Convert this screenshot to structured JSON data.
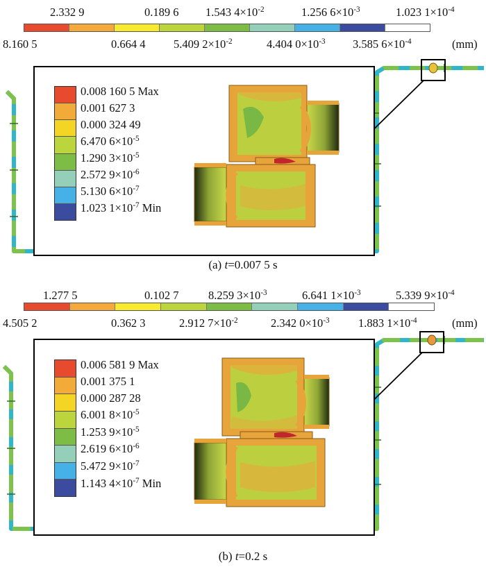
{
  "colors": {
    "scale": [
      "#e74a2c",
      "#f4a93a",
      "#f8ea2f",
      "#bcd53c",
      "#7ebd45",
      "#94cfb9",
      "#45b1e6",
      "#3a4ba0"
    ],
    "legend": [
      "#e74a2c",
      "#f2aa38",
      "#f4d424",
      "#bcd53c",
      "#7ebd45",
      "#94cfb9",
      "#45b1e6",
      "#3a4ba0"
    ],
    "pipe_green": "#7cc24b",
    "pipe_cyan": "#2fb6c9",
    "valve_body": "#e7a43b",
    "valve_interior": "#bcd03f"
  },
  "panels": [
    {
      "caption": {
        "prefix": "(a) ",
        "var": "t",
        "suffix": "=0.007 5 s"
      },
      "unit": "(mm)",
      "scale_top": [
        {
          "base": "2.332 9",
          "exp": ""
        },
        {
          "base": "0.189 6",
          "exp": ""
        },
        {
          "base": "1.543 4×10",
          "exp": "-2"
        },
        {
          "base": "1.256 6×10",
          "exp": "-3"
        },
        {
          "base": "1.023 1×10",
          "exp": "-4"
        }
      ],
      "scale_bottom": [
        {
          "base": "8.160 5",
          "exp": ""
        },
        {
          "base": "0.664 4",
          "exp": ""
        },
        {
          "base": "5.409 2×10",
          "exp": "-2"
        },
        {
          "base": "4.404 0×10",
          "exp": "-3"
        },
        {
          "base": "3.585 6×10",
          "exp": "-4"
        }
      ],
      "legend": [
        {
          "base": "0.008 160 5 Max",
          "exp": ""
        },
        {
          "base": "0.001 627 3",
          "exp": ""
        },
        {
          "base": "0.000 324 49",
          "exp": ""
        },
        {
          "base": "6.470 6×10",
          "exp": "-5"
        },
        {
          "base": "1.290 3×10",
          "exp": "-5"
        },
        {
          "base": "2.572 9×10",
          "exp": "-6"
        },
        {
          "base": "5.130 6×10",
          "exp": "-7"
        },
        {
          "base": "1.023 1×10",
          "exp": "-7",
          "tail": " Min"
        }
      ]
    },
    {
      "caption": {
        "prefix": "(b) ",
        "var": "t",
        "suffix": "=0.2 s"
      },
      "unit": "(mm)",
      "scale_top": [
        {
          "base": "1.277 5",
          "exp": ""
        },
        {
          "base": "0.102 7",
          "exp": ""
        },
        {
          "base": "8.259 3×10",
          "exp": "-3"
        },
        {
          "base": "6.641 1×10",
          "exp": "-3"
        },
        {
          "base": "5.339 9×10",
          "exp": "-4"
        }
      ],
      "scale_bottom": [
        {
          "base": "4.505 2",
          "exp": ""
        },
        {
          "base": "0.362 3",
          "exp": ""
        },
        {
          "base": "2.912 7×10",
          "exp": "-2"
        },
        {
          "base": "2.342 0×10",
          "exp": "-3"
        },
        {
          "base": "1.883 1×10",
          "exp": "-4"
        }
      ],
      "legend": [
        {
          "base": "0.006 581 9 Max",
          "exp": ""
        },
        {
          "base": "0.001 375 1",
          "exp": ""
        },
        {
          "base": "0.000 287 28",
          "exp": ""
        },
        {
          "base": "6.001 8×10",
          "exp": "-5"
        },
        {
          "base": "1.253 9×10",
          "exp": "-5"
        },
        {
          "base": "2.619 6×10",
          "exp": "-6"
        },
        {
          "base": "5.472 9×10",
          "exp": "-7"
        },
        {
          "base": "1.143 4×10",
          "exp": "-7",
          "tail": " Min"
        }
      ]
    }
  ]
}
